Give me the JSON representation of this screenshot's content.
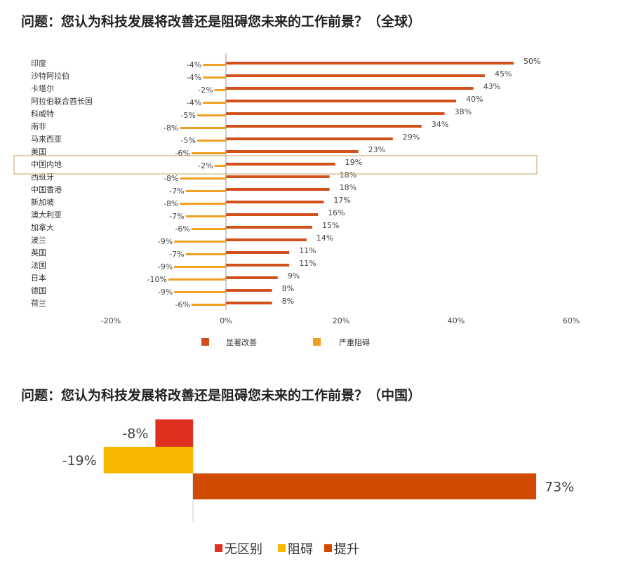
{
  "titles": {
    "global": "问题：您认为科技发展将改善还是阻碍您未来的工作前景？（全球）",
    "china": "问题：您认为科技发展将改善还是阻碍您未来的工作前景？（中国）"
  },
  "colors": {
    "improve": "#d2501c",
    "hinder": "#f0a020",
    "no_difference": "#e03020",
    "obstruct_cn": "#f8b800",
    "promote_cn": "#d04a00",
    "axis": "#999999",
    "highlight_box": "#c8a060"
  },
  "chart_data": [
    {
      "type": "bar",
      "orientation": "horizontal",
      "categories": [
        "印度",
        "沙特阿拉伯",
        "卡塔尔",
        "阿拉伯联合酋长国",
        "科威特",
        "南非",
        "马来西亚",
        "美国",
        "中国内地",
        "西班牙",
        "中国香港",
        "新加坡",
        "澳大利亚",
        "加拿大",
        "波兰",
        "英国",
        "法国",
        "日本",
        "德国",
        "荷兰"
      ],
      "series": [
        {
          "name": "显著改善",
          "values": [
            50,
            45,
            43,
            40,
            38,
            34,
            29,
            23,
            19,
            18,
            18,
            17,
            16,
            15,
            14,
            11,
            11,
            9,
            8,
            8
          ]
        },
        {
          "name": "严重阻碍",
          "values": [
            -4,
            -4,
            -2,
            -4,
            -5,
            -8,
            -5,
            -6,
            -2,
            -8,
            -7,
            -8,
            -7,
            -6,
            -9,
            -7,
            -9,
            -10,
            -9,
            -6
          ]
        }
      ],
      "value_labels": {
        "improve": [
          "50%",
          "45%",
          "43%",
          "40%",
          "38%",
          "34%",
          "29%",
          "23%",
          "19%",
          "18%",
          "18%",
          "17%",
          "16%",
          "15%",
          "14%",
          "11%",
          "11%",
          "9%",
          "8%",
          "8%"
        ],
        "hinder": [
          "-4%",
          "-4%",
          "-2%",
          "-4%",
          "-5%",
          "-8%",
          "-5%",
          "-6%",
          "-2%",
          "-8%",
          "-7%",
          "-8%",
          "-7%",
          "-6%",
          "-9%",
          "-7%",
          "-9%",
          "-10%",
          "-9%",
          "-6%"
        ]
      },
      "xlim": [
        -20,
        60
      ],
      "xticks": [
        "-20%",
        "0%",
        "20%",
        "40%",
        "60%"
      ],
      "legend": [
        "显著改善",
        "严重阻碍"
      ],
      "legend_position": "bottom",
      "highlighted_category": "中国内地",
      "grid": false
    },
    {
      "type": "bar",
      "orientation": "horizontal",
      "categories": [
        "无区别",
        "阻碍",
        "提升"
      ],
      "values": [
        -8,
        -19,
        73
      ],
      "value_labels": [
        "-8%",
        "-19%",
        "73%"
      ],
      "legend": [
        "无区别",
        "阻碍",
        "提升"
      ],
      "legend_position": "bottom",
      "grid": false
    }
  ]
}
